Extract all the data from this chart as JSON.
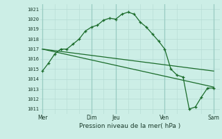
{
  "background_color": "#cceee6",
  "grid_color_minor": "#b8ddd6",
  "grid_color_major": "#99ccc2",
  "line_color": "#1a6b2a",
  "xlabel": "Pression niveau de la mer( hPa )",
  "ylim": [
    1010.5,
    1021.5
  ],
  "yticks": [
    1011,
    1012,
    1013,
    1014,
    1015,
    1016,
    1017,
    1018,
    1019,
    1020,
    1021
  ],
  "x_day_labels": [
    "Mer",
    "Dim",
    "Jeu",
    "Ven",
    "Sam"
  ],
  "x_day_positions": [
    0,
    4,
    6,
    10,
    14
  ],
  "xlim": [
    -0.2,
    14.5
  ],
  "series1_x": [
    0,
    0.5,
    1.0,
    1.5,
    2.0,
    2.5,
    3.0,
    3.5,
    4.0,
    4.5,
    5.0,
    5.5,
    6.0,
    6.5,
    7.0,
    7.5,
    8.0,
    8.5,
    9.0,
    9.5,
    10.0,
    10.5,
    11.0,
    11.5,
    12.0,
    12.5,
    13.0,
    13.5,
    14.0
  ],
  "series1_y": [
    1014.8,
    1015.6,
    1016.5,
    1017.0,
    1017.0,
    1017.5,
    1018.0,
    1018.8,
    1019.2,
    1019.4,
    1019.9,
    1020.1,
    1020.0,
    1020.5,
    1020.7,
    1020.5,
    1019.7,
    1019.2,
    1018.5,
    1017.8,
    1017.0,
    1015.0,
    1014.4,
    1014.2,
    1011.0,
    1011.2,
    1012.2,
    1013.1,
    1013.1
  ],
  "series2_x": [
    0,
    14
  ],
  "series2_y": [
    1017.0,
    1013.2
  ],
  "series3_x": [
    0,
    14
  ],
  "series3_y": [
    1017.0,
    1014.8
  ],
  "minor_vlines_x": [
    1,
    2,
    3,
    5,
    7,
    8,
    9,
    11,
    13
  ],
  "major_vlines_x": [
    0,
    4,
    6,
    10,
    14
  ]
}
